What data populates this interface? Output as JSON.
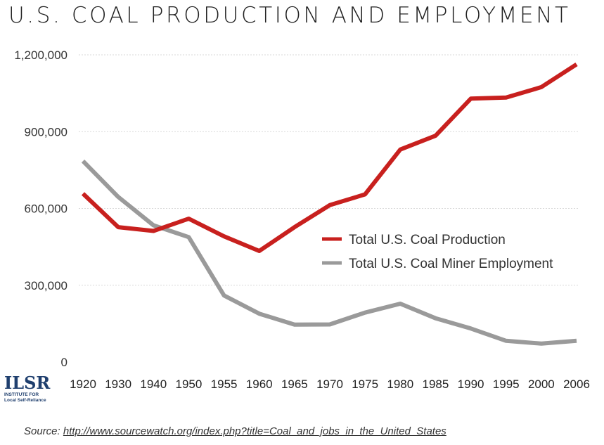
{
  "title": "U.S. COAL PRODUCTION AND EMPLOYMENT",
  "logo": {
    "mark": "ILSR",
    "line1": "INSTITUTE FOR",
    "line2": "Local Self-Reliance"
  },
  "source": {
    "label": "Source:",
    "url": "http://www.sourcewatch.org/index.php?title=Coal_and_jobs_in_the_United_States"
  },
  "chart_data": {
    "type": "line",
    "title": "U.S. COAL PRODUCTION AND EMPLOYMENT",
    "categories": [
      "1920",
      "1930",
      "1940",
      "1950",
      "1955",
      "1960",
      "1965",
      "1970",
      "1975",
      "1980",
      "1985",
      "1990",
      "1995",
      "2000",
      "2006"
    ],
    "series": [
      {
        "name": "Total U.S. Coal Production",
        "color": "#c8201e",
        "values": [
          658000,
          527000,
          512000,
          560000,
          491000,
          434000,
          527000,
          613000,
          655000,
          830000,
          884000,
          1029000,
          1033000,
          1074000,
          1163000
        ]
      },
      {
        "name": "Total U.S. Coal Miner Employment",
        "color": "#9a9a9a",
        "values": [
          785000,
          645000,
          534000,
          488000,
          260000,
          189000,
          146000,
          147000,
          193000,
          228000,
          171000,
          131000,
          83000,
          72000,
          83000
        ]
      }
    ],
    "ylim": [
      0,
      1200000
    ],
    "yticks": [
      0,
      300000,
      600000,
      900000,
      1200000
    ],
    "ytick_labels": [
      "0",
      "300,000",
      "600,000",
      "900,000",
      "1,200,000"
    ],
    "grid": true,
    "legend_position": "center-right"
  }
}
